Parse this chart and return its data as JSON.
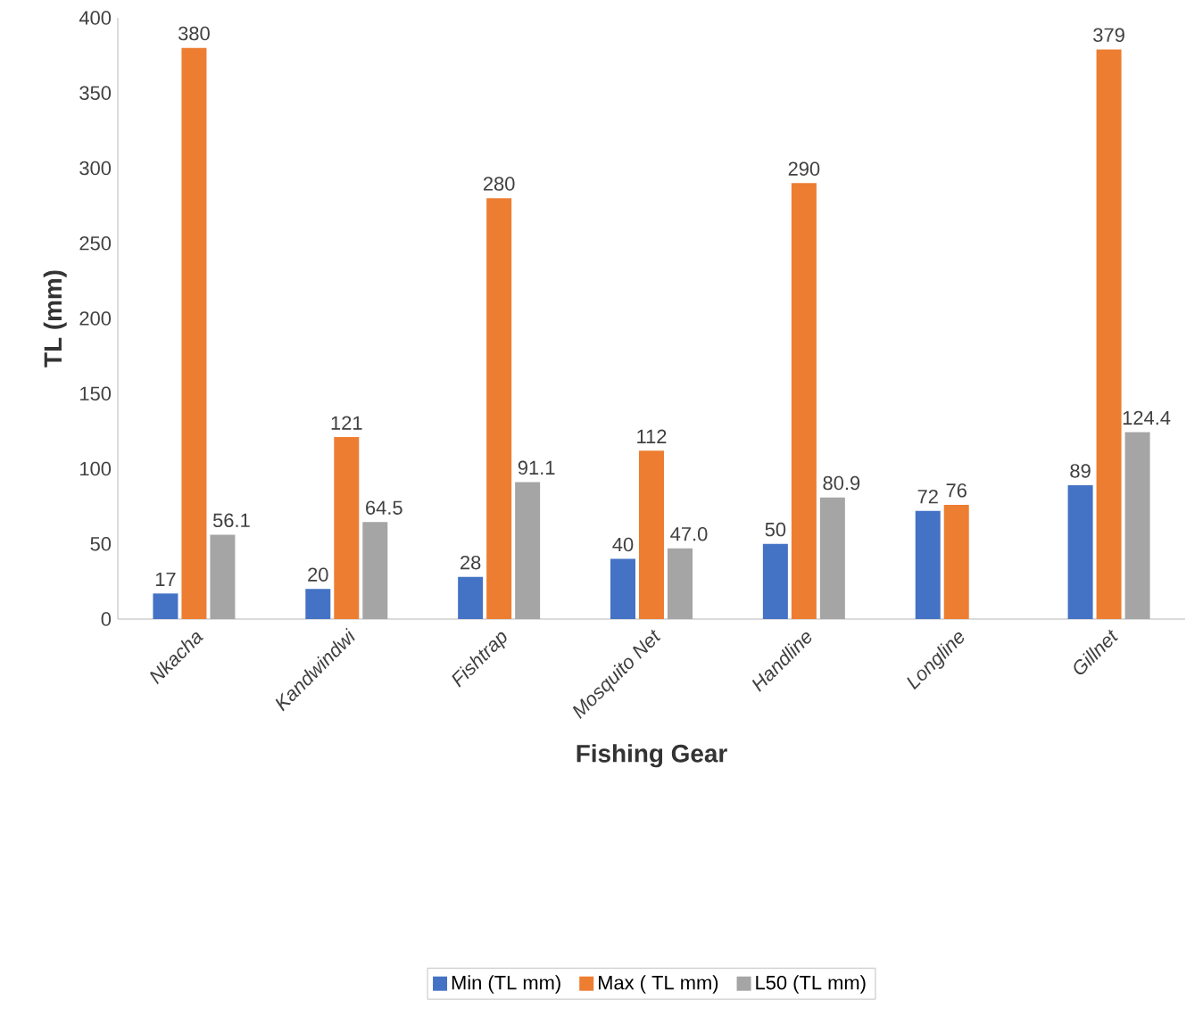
{
  "chart_data": {
    "type": "bar",
    "xlabel": "Fishing Gear",
    "ylabel": "TL (mm)",
    "categories": [
      "Nkacha",
      "Kandwindwi",
      "Fishtrap",
      "Mosquito Net",
      "Handline",
      "Longline",
      "Gillnet"
    ],
    "series": [
      {
        "name": "Min (TL mm)",
        "color": "#4472c4",
        "values": [
          17,
          20,
          28,
          40,
          50,
          72,
          89
        ],
        "value_labels": [
          "17",
          "20",
          "28",
          "40",
          "50",
          "72",
          "89"
        ]
      },
      {
        "name": "Max ( TL mm)",
        "color": "#ed7d31",
        "values": [
          380,
          121,
          280,
          112,
          290,
          76,
          379
        ],
        "value_labels": [
          "380",
          "121",
          "280",
          "112",
          "290",
          "76",
          "379"
        ]
      },
      {
        "name": "L50 (TL mm)",
        "color": "#a5a5a5",
        "values": [
          56.1,
          64.5,
          91.1,
          47.0,
          80.9,
          null,
          124.4
        ],
        "value_labels": [
          "56.1",
          "64.5",
          "91.1",
          "47.0",
          "80.9",
          null,
          "124.4"
        ]
      }
    ],
    "ylim": [
      0,
      400
    ],
    "yticks": [
      0,
      50,
      100,
      150,
      200,
      250,
      300,
      350,
      400
    ],
    "legend": "bottom"
  }
}
